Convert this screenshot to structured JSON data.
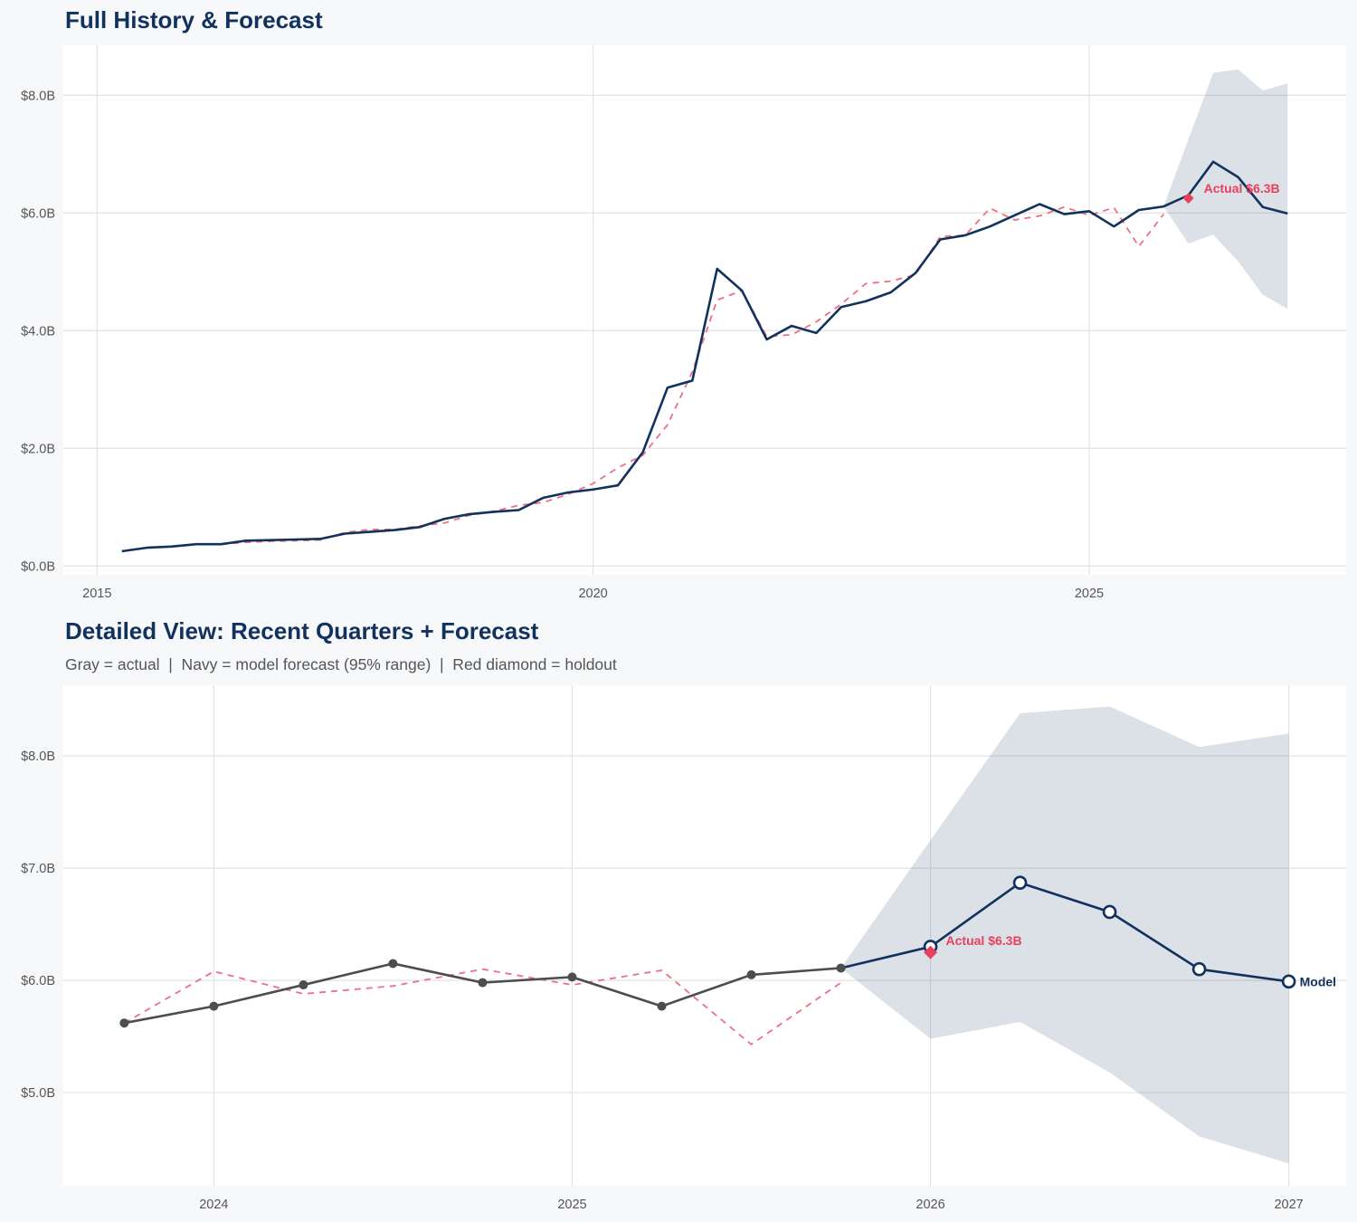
{
  "colors": {
    "navy": "#12325e",
    "gray_actual": "#4d4d4d",
    "fitted_red": "#ec7086",
    "holdout_red": "#e8415e",
    "band": "#12325e",
    "grid": "#e3e3e3",
    "panel": "#ffffff",
    "background": "#f7f8fa"
  },
  "chart_data": [
    {
      "type": "line",
      "title": "Full History & Forecast",
      "x_type": "date-quarterly",
      "xlim": [
        2014.66,
        2027.59
      ],
      "ylim": [
        -0.15,
        8.85
      ],
      "y_unit": "$B",
      "grid": true,
      "x_ticks": [
        {
          "value": 2015,
          "label": "2015"
        },
        {
          "value": 2020,
          "label": "2020"
        },
        {
          "value": 2025,
          "label": "2025"
        }
      ],
      "y_ticks": [
        {
          "value": 0,
          "label": "$0.0B"
        },
        {
          "value": 2,
          "label": "$2.0B"
        },
        {
          "value": 4,
          "label": "$4.0B"
        },
        {
          "value": 6,
          "label": "$6.0B"
        },
        {
          "value": 8,
          "label": "$8.0B"
        }
      ],
      "history": {
        "start": "2015-04",
        "values": [
          0.25,
          0.31,
          0.33,
          0.37,
          0.37,
          0.43,
          0.44,
          0.45,
          0.46,
          0.55,
          0.58,
          0.61,
          0.66,
          0.8,
          0.88,
          0.92,
          0.95,
          1.16,
          1.25,
          1.3,
          1.37,
          1.93,
          3.03,
          3.15,
          5.05,
          4.68,
          3.85,
          4.08,
          3.96,
          4.4,
          4.5,
          4.65,
          4.98,
          5.55,
          5.62,
          5.77,
          5.96,
          6.15,
          5.98,
          6.03,
          5.77,
          6.05,
          6.11
        ]
      },
      "fitted": {
        "start": "2016-04",
        "values": [
          0.37,
          0.4,
          0.42,
          0.43,
          0.44,
          0.57,
          0.62,
          0.62,
          0.68,
          0.73,
          0.86,
          0.93,
          1.03,
          1.08,
          1.22,
          1.4,
          1.67,
          1.88,
          2.4,
          3.3,
          4.52,
          4.68,
          3.9,
          3.93,
          4.15,
          4.45,
          4.8,
          4.84,
          4.95,
          5.6,
          5.62,
          6.08,
          5.88,
          5.95,
          6.1,
          5.96,
          6.09,
          5.43,
          5.98
        ]
      },
      "forecast": {
        "start": "2026-01",
        "values": [
          6.3,
          6.87,
          6.61,
          6.1,
          5.99
        ]
      },
      "band_95": {
        "start": "2025-10",
        "lower": [
          6.11,
          5.48,
          5.63,
          5.18,
          4.61,
          4.37
        ],
        "upper": [
          6.11,
          7.25,
          8.38,
          8.44,
          8.08,
          8.2
        ]
      },
      "holdout": {
        "date": "2026-01",
        "value": 6.25,
        "label": "Actual $6.3B"
      }
    },
    {
      "type": "line",
      "title": "Detailed View: Recent Quarters + Forecast",
      "subtitle": "Gray = actual  |  Navy = model forecast (95% range)  |  Red diamond = holdout",
      "x_type": "date-quarterly",
      "xlim": [
        2023.58,
        2027.16
      ],
      "ylim": [
        4.17,
        8.63
      ],
      "y_unit": "$B",
      "grid": true,
      "x_ticks": [
        {
          "value": 2024,
          "label": "2024"
        },
        {
          "value": 2025,
          "label": "2025"
        },
        {
          "value": 2026,
          "label": "2026"
        },
        {
          "value": 2027,
          "label": "2027"
        }
      ],
      "y_ticks": [
        {
          "value": 5,
          "label": "$5.0B"
        },
        {
          "value": 6,
          "label": "$6.0B"
        },
        {
          "value": 7,
          "label": "$7.0B"
        },
        {
          "value": 8,
          "label": "$8.0B"
        }
      ],
      "history": {
        "start": "2023-10",
        "values": [
          5.62,
          5.77,
          5.96,
          6.15,
          5.98,
          6.03,
          5.77,
          6.05,
          6.11
        ]
      },
      "fitted": {
        "start": "2023-10",
        "values": [
          5.62,
          6.08,
          5.88,
          5.95,
          6.1,
          5.96,
          6.09,
          5.43,
          5.98
        ]
      },
      "forecast": {
        "start": "2026-01",
        "values": [
          6.3,
          6.87,
          6.61,
          6.1,
          5.99
        ],
        "end_label": "Model"
      },
      "band_95": {
        "start": "2025-10",
        "lower": [
          6.11,
          5.48,
          5.63,
          5.18,
          4.61,
          4.37
        ],
        "upper": [
          6.11,
          7.25,
          8.38,
          8.44,
          8.08,
          8.2
        ]
      },
      "holdout": {
        "date": "2026-01",
        "value": 6.25,
        "label": "Actual $6.3B"
      }
    }
  ]
}
